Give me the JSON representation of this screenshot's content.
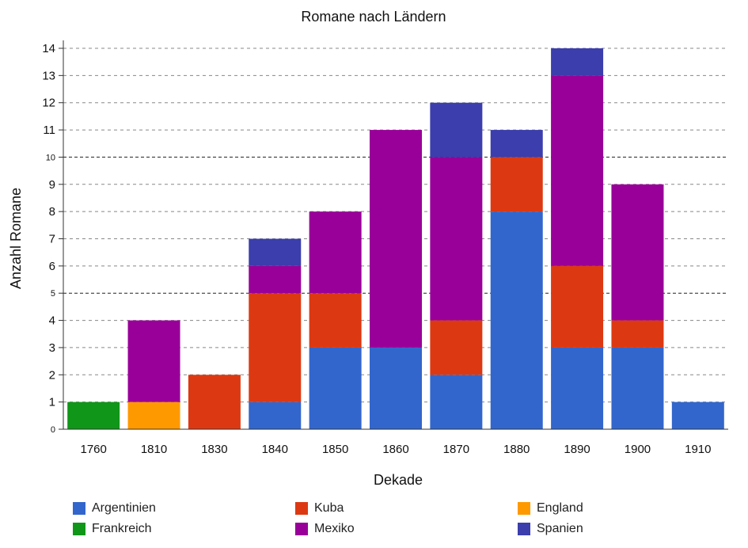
{
  "chart_data": {
    "type": "bar",
    "stacked": true,
    "title": "Romane nach Ländern",
    "xlabel": "Dekade",
    "ylabel": "Anzahl Romane",
    "ylim": [
      0,
      14
    ],
    "yticks": [
      0,
      1,
      2,
      3,
      4,
      5,
      6,
      7,
      8,
      9,
      10,
      11,
      12,
      13,
      14
    ],
    "grid": true,
    "legend_position": "bottom",
    "categories": [
      "1760",
      "1810",
      "1830",
      "1840",
      "1850",
      "1860",
      "1870",
      "1880",
      "1890",
      "1900",
      "1910"
    ],
    "series": [
      {
        "name": "Argentinien",
        "color": "#3366cc",
        "values": [
          0,
          0,
          0,
          1,
          3,
          3,
          2,
          8,
          3,
          3,
          1
        ]
      },
      {
        "name": "Kuba",
        "color": "#dc3912",
        "values": [
          0,
          0,
          2,
          4,
          2,
          0,
          2,
          2,
          3,
          1,
          0
        ]
      },
      {
        "name": "England",
        "color": "#ff9900",
        "values": [
          0,
          1,
          0,
          0,
          0,
          0,
          0,
          0,
          0,
          0,
          0
        ]
      },
      {
        "name": "Frankreich",
        "color": "#109618",
        "values": [
          1,
          0,
          0,
          0,
          0,
          0,
          0,
          0,
          0,
          0,
          0
        ]
      },
      {
        "name": "Mexiko",
        "color": "#990099",
        "values": [
          0,
          3,
          0,
          1,
          3,
          8,
          6,
          0,
          7,
          5,
          0
        ]
      },
      {
        "name": "Spanien",
        "color": "#3b3eac",
        "values": [
          0,
          0,
          0,
          1,
          0,
          0,
          2,
          1,
          1,
          0,
          0
        ]
      }
    ]
  }
}
